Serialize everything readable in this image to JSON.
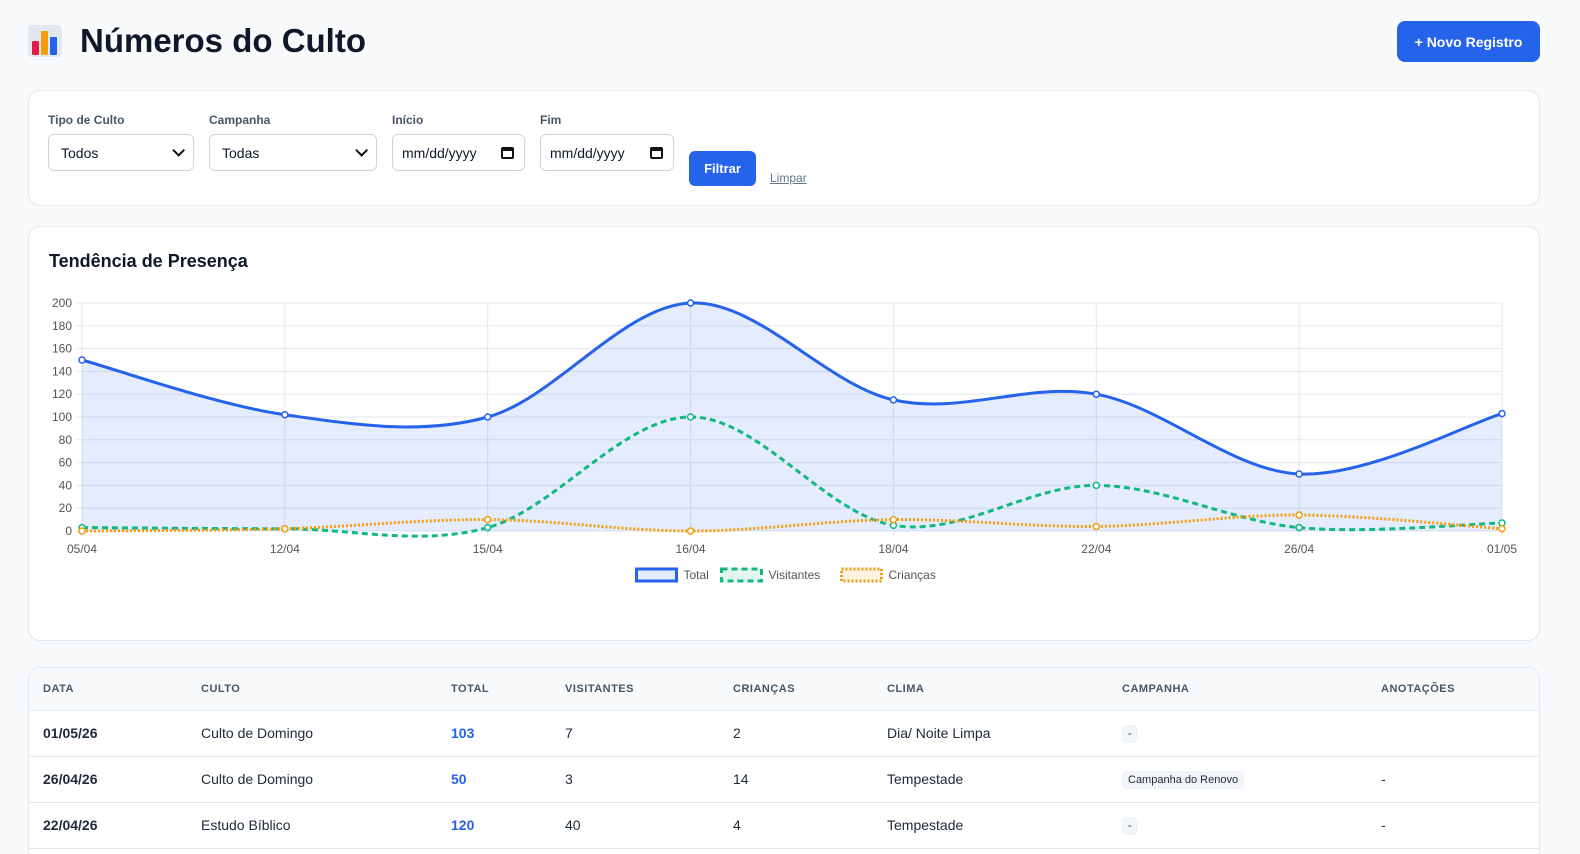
{
  "header": {
    "title": "Números do Culto",
    "new_button": "+ Novo Registro"
  },
  "filters": {
    "culto_label": "Tipo de Culto",
    "culto_value": "Todos",
    "campanha_label": "Campanha",
    "campanha_value": "Todas",
    "inicio_label": "Início",
    "inicio_placeholder": "mm/dd/yyyy",
    "fim_label": "Fim",
    "fim_placeholder": "mm/dd/yyyy",
    "filter_button": "Filtrar",
    "clear_link": "Limpar"
  },
  "chart_title": "Tendência de Presença",
  "chart_data": {
    "type": "line",
    "x": [
      "05/04",
      "12/04",
      "15/04",
      "16/04",
      "18/04",
      "22/04",
      "26/04",
      "01/05"
    ],
    "ylim": [
      0,
      200
    ],
    "yticks": [
      0,
      20,
      40,
      60,
      80,
      100,
      120,
      140,
      160,
      180,
      200
    ],
    "grid": true,
    "legend": "bottom",
    "series": [
      {
        "name": "Total",
        "values": [
          150,
          102,
          100,
          200,
          115,
          120,
          50,
          103
        ],
        "color": "#2563eb",
        "style": "solid",
        "fill": true
      },
      {
        "name": "Visitantes",
        "values": [
          3,
          2,
          3,
          100,
          5,
          40,
          3,
          7
        ],
        "color": "#10b981",
        "style": "dashed"
      },
      {
        "name": "Crianças",
        "values": [
          0,
          2,
          10,
          0,
          10,
          4,
          14,
          2
        ],
        "color": "#f59e0b",
        "style": "dotted"
      }
    ]
  },
  "table": {
    "headers": [
      "DATA",
      "CULTO",
      "TOTAL",
      "VISITANTES",
      "CRIANÇAS",
      "CLIMA",
      "CAMPANHA",
      "ANOTAÇÕES"
    ],
    "rows": [
      {
        "data": "01/05/26",
        "culto": "Culto de Domingo",
        "total": "103",
        "visitantes": "7",
        "criancas": "2",
        "clima": "Dia/ Noite Limpa",
        "campanha": "-",
        "anotacoes": ""
      },
      {
        "data": "26/04/26",
        "culto": "Culto de Domingo",
        "total": "50",
        "visitantes": "3",
        "criancas": "14",
        "clima": "Tempestade",
        "campanha": "Campanha do Renovo",
        "anotacoes": "-"
      },
      {
        "data": "22/04/26",
        "culto": "Estudo Bíblico",
        "total": "120",
        "visitantes": "40",
        "criancas": "4",
        "clima": "Tempestade",
        "campanha": "-",
        "anotacoes": "-"
      }
    ]
  }
}
